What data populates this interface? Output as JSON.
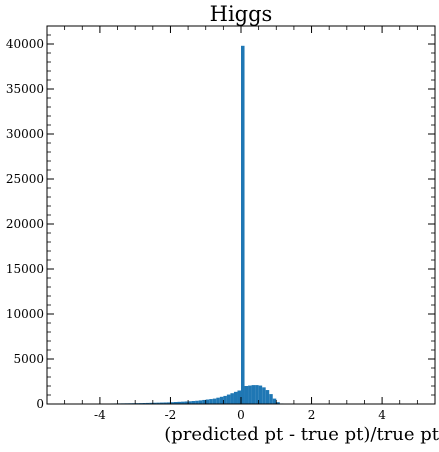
{
  "chart_data": {
    "type": "bar",
    "title": "Higgs",
    "xlabel": "(predicted pt - true pt)/true pt",
    "ylabel": "",
    "xlim": [
      -5.5,
      5.5
    ],
    "ylim": [
      0,
      42000
    ],
    "x_ticks": [
      -4,
      -2,
      0,
      2,
      4
    ],
    "x_tick_labels": [
      "-4",
      "-2",
      "0",
      "2",
      "4"
    ],
    "y_ticks": [
      0,
      5000,
      10000,
      15000,
      20000,
      25000,
      30000,
      35000,
      40000
    ],
    "y_tick_labels": [
      "0",
      "5000",
      "10000",
      "15000",
      "20000",
      "25000",
      "30000",
      "35000",
      "40000"
    ],
    "bin_width": 0.1,
    "bins_x": [
      -5.0,
      -4.9,
      -4.8,
      -4.7,
      -4.6,
      -4.5,
      -4.4,
      -4.3,
      -4.2,
      -4.1,
      -4.0,
      -3.9,
      -3.8,
      -3.7,
      -3.6,
      -3.5,
      -3.4,
      -3.3,
      -3.2,
      -3.1,
      -3.0,
      -2.9,
      -2.8,
      -2.7,
      -2.6,
      -2.5,
      -2.4,
      -2.3,
      -2.2,
      -2.1,
      -2.0,
      -1.9,
      -1.8,
      -1.7,
      -1.6,
      -1.5,
      -1.4,
      -1.3,
      -1.2,
      -1.1,
      -1.0,
      -0.9,
      -0.8,
      -0.7,
      -0.6,
      -0.5,
      -0.4,
      -0.3,
      -0.2,
      -0.1,
      0.0,
      0.1,
      0.2,
      0.3,
      0.4,
      0.5,
      0.6,
      0.7,
      0.8,
      0.9,
      1.0,
      1.1,
      1.2,
      1.3,
      1.4,
      1.5
    ],
    "values": [
      20,
      20,
      25,
      25,
      30,
      30,
      35,
      40,
      40,
      45,
      50,
      55,
      55,
      60,
      65,
      70,
      75,
      80,
      85,
      90,
      95,
      100,
      110,
      120,
      130,
      140,
      150,
      160,
      170,
      180,
      200,
      220,
      240,
      260,
      280,
      300,
      330,
      360,
      400,
      450,
      500,
      550,
      600,
      700,
      800,
      900,
      1050,
      1200,
      1350,
      1500,
      39800,
      2000,
      2050,
      2100,
      2100,
      2050,
      1850,
      1550,
      1100,
      600,
      200,
      60,
      20,
      10,
      5,
      5
    ],
    "color": "#1f77b4",
    "grid": false,
    "legend": "none"
  }
}
